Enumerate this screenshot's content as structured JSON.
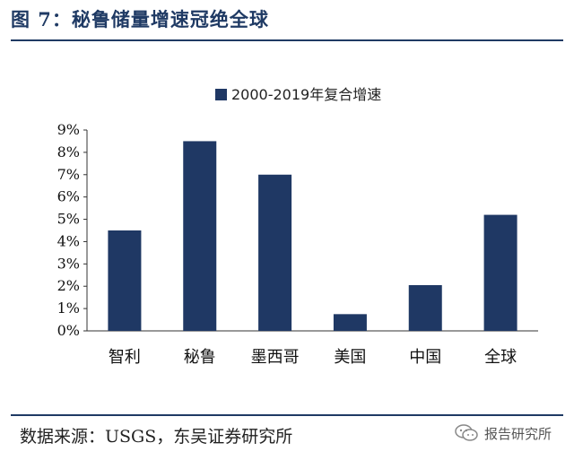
{
  "figure": {
    "title": "图 7：秘鲁储量增速冠绝全球",
    "source": "数据来源：USGS，东吴证券研究所",
    "watermark": "报告研究所",
    "watermark_icon": "wechat-icon"
  },
  "chart_data": {
    "type": "bar",
    "title": "",
    "xlabel": "",
    "ylabel": "",
    "categories": [
      "智利",
      "秘鲁",
      "墨西哥",
      "美国",
      "中国",
      "全球"
    ],
    "series": [
      {
        "name": "2000-2019年复合增速",
        "values": [
          4.5,
          8.5,
          7.0,
          0.75,
          2.05,
          5.2
        ],
        "color": "#1f3864"
      }
    ],
    "yticks": [
      "0%",
      "1%",
      "2%",
      "3%",
      "4%",
      "5%",
      "6%",
      "7%",
      "8%",
      "9%"
    ],
    "ylim": [
      0,
      9
    ],
    "grid": false,
    "legend_position": "top-center"
  }
}
